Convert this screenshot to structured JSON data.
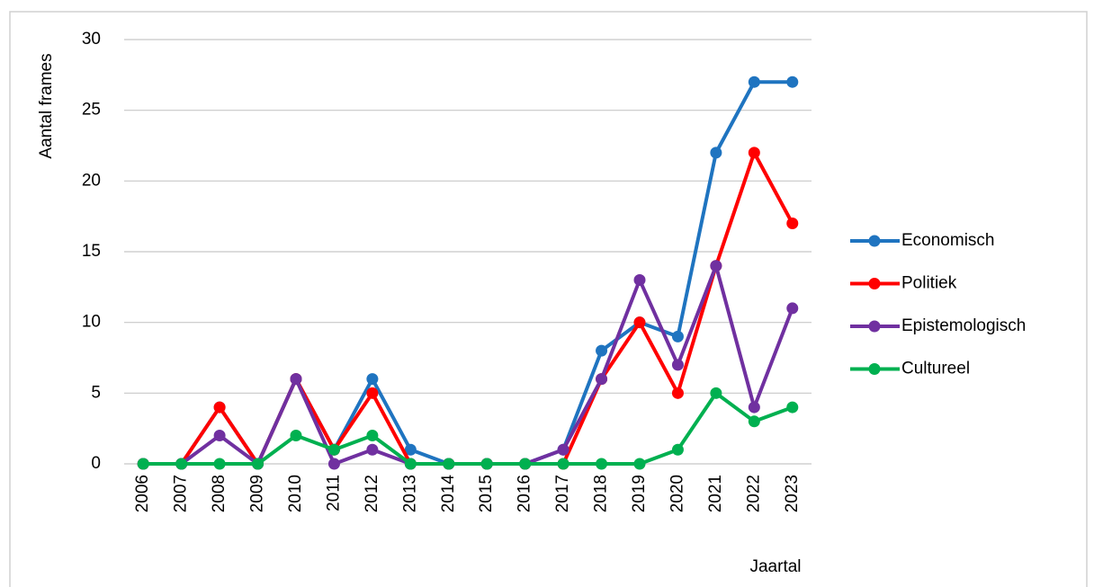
{
  "chart_data": {
    "type": "line",
    "y_label": "Aantal frames",
    "x_label": "Jaartal",
    "categories": [
      "2006",
      "2007",
      "2008",
      "2009",
      "2010",
      "2011",
      "2012",
      "2013",
      "2014",
      "2015",
      "2016",
      "2017",
      "2018",
      "2019",
      "2020",
      "2021",
      "2022",
      "2023"
    ],
    "series": [
      {
        "name": "Economisch",
        "color": "#1f74c0",
        "values": [
          0,
          0,
          4,
          0,
          6,
          1,
          6,
          1,
          0,
          0,
          0,
          1,
          8,
          10,
          9,
          22,
          27,
          27
        ]
      },
      {
        "name": "Politiek",
        "color": "#ff0000",
        "values": [
          0,
          0,
          4,
          0,
          6,
          1,
          5,
          0,
          0,
          0,
          0,
          0,
          6,
          10,
          5,
          14,
          22,
          17
        ]
      },
      {
        "name": "Epistemologisch",
        "color": "#7030a0",
        "values": [
          0,
          0,
          2,
          0,
          6,
          0,
          1,
          0,
          0,
          0,
          0,
          1,
          6,
          13,
          7,
          14,
          4,
          11
        ]
      },
      {
        "name": "Cultureel",
        "color": "#00b050",
        "values": [
          0,
          0,
          0,
          0,
          2,
          1,
          2,
          0,
          0,
          0,
          0,
          0,
          0,
          0,
          1,
          5,
          3,
          4
        ]
      }
    ],
    "ylim": [
      0,
      30
    ],
    "yticks": [
      0,
      5,
      10,
      15,
      20,
      25,
      30
    ],
    "grid": true,
    "legend": "right"
  }
}
